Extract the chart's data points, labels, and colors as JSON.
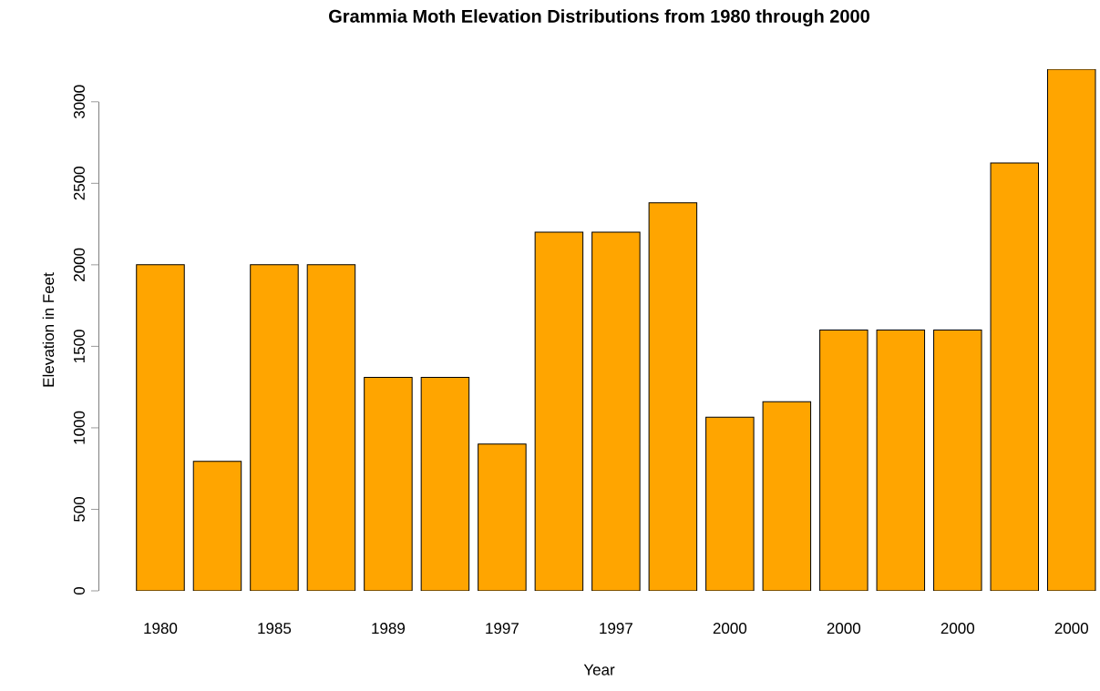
{
  "chart_data": {
    "type": "bar",
    "title": "Grammia Moth Elevation Distributions from 1980 through 2000",
    "xlabel": "Year",
    "ylabel": "Elevation in Feet",
    "categories": [
      "1980",
      null,
      "1985",
      null,
      "1989",
      null,
      "1997",
      null,
      "1997",
      null,
      "2000",
      null,
      "2000",
      null,
      "2000",
      null,
      "2000"
    ],
    "values": [
      2000,
      795,
      2000,
      2000,
      1310,
      1310,
      900,
      2200,
      2200,
      2380,
      1065,
      1160,
      1600,
      1600,
      1600,
      2625,
      3200
    ],
    "color": "#ffa500",
    "ylim": [
      0,
      3200
    ],
    "yticks": [
      0,
      500,
      1000,
      1500,
      2000,
      2500,
      3000
    ]
  }
}
